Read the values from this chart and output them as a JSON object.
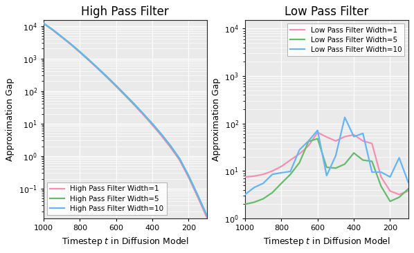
{
  "hp_title": "High Pass Filter",
  "lp_title": "Low Pass Filter",
  "xlabel": "Timestep $t$ in Diffusion Model",
  "ylabel": "Approximation Gap",
  "hp_legend": [
    "High Pass Filter Width=1",
    "High Pass Filter Width=5",
    "High Pass Filter Width=10"
  ],
  "lp_legend": [
    "Low Pass Filter Width=1",
    "Low Pass Filter Width=5",
    "Low Pass Filter Width=10"
  ],
  "colors": [
    "#f48fb1",
    "#66bb6a",
    "#64b5f6"
  ],
  "hp_ylim": [
    0.012,
    15000
  ],
  "lp_ylim": [
    1.0,
    15000
  ],
  "hp_x": [
    1000,
    950,
    900,
    850,
    800,
    750,
    700,
    650,
    600,
    550,
    500,
    450,
    400,
    350,
    300,
    250,
    200,
    150,
    100
  ],
  "hp_w1": [
    12000,
    7500,
    4500,
    2700,
    1550,
    870,
    480,
    260,
    138,
    72,
    37,
    18.5,
    9.0,
    4.2,
    1.85,
    0.75,
    0.22,
    0.055,
    0.013
  ],
  "hp_w5": [
    12000,
    7700,
    4650,
    2780,
    1600,
    900,
    500,
    272,
    145,
    76,
    39.5,
    19.8,
    9.8,
    4.6,
    2.05,
    0.82,
    0.245,
    0.062,
    0.015
  ],
  "hp_w10": [
    12000,
    7750,
    4680,
    2800,
    1620,
    912,
    505,
    276,
    147,
    77,
    40,
    20.1,
    9.95,
    4.7,
    2.1,
    0.84,
    0.25,
    0.063,
    0.015
  ],
  "lp_x": [
    1000,
    950,
    900,
    850,
    800,
    750,
    700,
    650,
    600,
    550,
    500,
    450,
    400,
    350,
    300,
    250,
    200,
    150,
    100
  ],
  "lp_w1": [
    7.5,
    7.8,
    8.5,
    10.0,
    12.5,
    17.0,
    23.0,
    34.0,
    65.0,
    52.0,
    43.0,
    53.0,
    58.0,
    43.0,
    38.0,
    7.5,
    3.8,
    3.2,
    3.8
  ],
  "lp_w5": [
    2.0,
    2.2,
    2.6,
    3.5,
    5.5,
    8.5,
    15.0,
    42.0,
    48.0,
    12.0,
    11.5,
    14.0,
    24.0,
    17.0,
    16.0,
    4.8,
    2.3,
    2.8,
    4.2
  ],
  "lp_w10": [
    3.2,
    4.5,
    5.5,
    8.5,
    9.2,
    9.8,
    28.0,
    43.0,
    72.0,
    8.0,
    21.0,
    135.0,
    53.0,
    62.0,
    9.5,
    9.5,
    7.5,
    19.0,
    5.8
  ],
  "bg_color": "#eaeaea",
  "grid_color": "#ffffff",
  "spine_color": "#222222",
  "linewidth": 1.6,
  "title_fontsize": 12,
  "label_fontsize": 9,
  "legend_fontsize": 7.5,
  "tick_fontsize": 8
}
